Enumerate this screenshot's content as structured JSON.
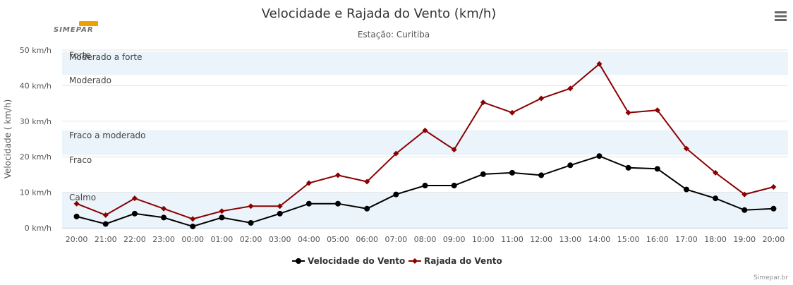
{
  "chart_data": {
    "type": "line",
    "title": "Velocidade e Rajada do Vento (km/h)",
    "subtitle": "Estação: Curitiba",
    "ylabel": "Velocidade ( km/h)",
    "ytick_suffix": " km/h",
    "ylim": [
      0,
      50
    ],
    "yticks": [
      0,
      10,
      20,
      30,
      40,
      50
    ],
    "categories": [
      "20:00",
      "21:00",
      "22:00",
      "23:00",
      "00:00",
      "01:00",
      "02:00",
      "03:00",
      "04:00",
      "05:00",
      "06:00",
      "07:00",
      "08:00",
      "09:00",
      "10:00",
      "11:00",
      "12:00",
      "13:00",
      "14:00",
      "15:00",
      "16:00",
      "17:00",
      "18:00",
      "19:00",
      "20:00"
    ],
    "series": [
      {
        "name": "Velocidade do Vento",
        "color": "#000000",
        "marker": "circle",
        "values": [
          3.2,
          1.1,
          4.0,
          2.9,
          0.4,
          2.9,
          1.4,
          4.0,
          6.8,
          6.8,
          5.4,
          9.4,
          11.9,
          11.9,
          15.1,
          15.5,
          14.8,
          17.6,
          20.2,
          16.9,
          16.6,
          10.8,
          8.3,
          5.0,
          5.4
        ]
      },
      {
        "name": "Rajada do Vento",
        "color": "#8b0000",
        "marker": "diamond",
        "values": [
          6.8,
          3.6,
          8.3,
          5.4,
          2.5,
          4.7,
          6.1,
          6.1,
          12.6,
          14.8,
          13.0,
          20.9,
          27.4,
          22.0,
          35.3,
          32.4,
          36.4,
          39.2,
          46.1,
          32.4,
          33.1,
          22.3,
          15.5,
          9.4,
          11.5
        ]
      }
    ],
    "plot_bands": [
      {
        "label": "Calmo",
        "from": 0,
        "to": 10,
        "color": "#ebf4fa"
      },
      {
        "label": "Fraco",
        "from": 10,
        "to": 20.5,
        "color": "#ffffff"
      },
      {
        "label": "Fraco a moderado",
        "from": 20.5,
        "to": 27.5,
        "color": "#ebf4fa"
      },
      {
        "label": "Moderado",
        "from": 27.5,
        "to": 43,
        "color": "#ffffff"
      },
      {
        "label": "Moderado a forte",
        "from": 43,
        "to": 49.5,
        "color": "#ebf4fa"
      },
      {
        "label": "Forte",
        "from": 49.5,
        "to": 50,
        "color": "#ffffff"
      }
    ],
    "grid": true,
    "legend_position": "bottom-center"
  },
  "logo": {
    "text": "SIMEPAR",
    "accent_color": "#f0a000"
  },
  "menu": {
    "icon": "hamburger-menu-icon"
  },
  "credits": {
    "text": "Simepar.br"
  }
}
